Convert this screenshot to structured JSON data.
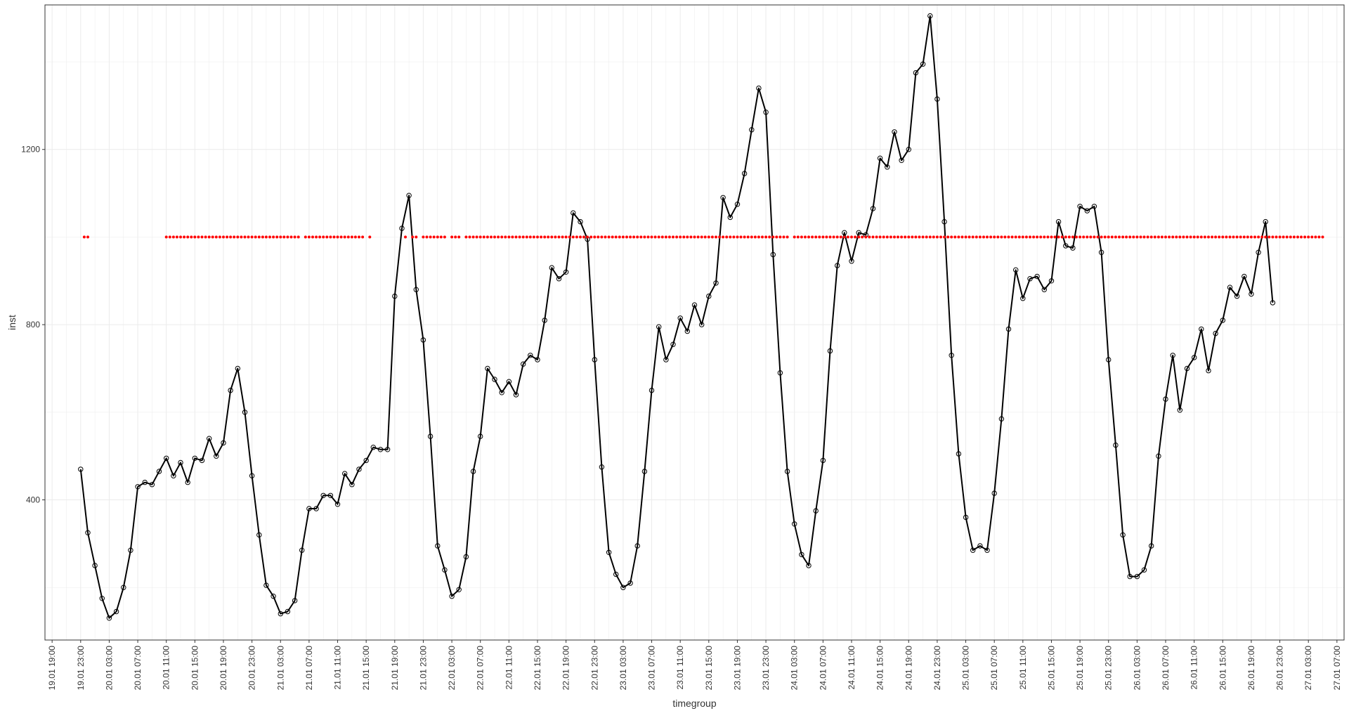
{
  "chart_data": {
    "type": "line",
    "title": "",
    "xlabel": "timegroup",
    "ylabel": "inst",
    "ylim": [
      80,
      1530
    ],
    "y_ticks": [
      400,
      800,
      1200
    ],
    "x_start": "2019-01-19T19:00",
    "x_ticks": [
      "19.01 19:00",
      "19.01 23:00",
      "20.01 03:00",
      "20.01 07:00",
      "20.01 11:00",
      "20.01 15:00",
      "20.01 19:00",
      "20.01 23:00",
      "21.01 03:00",
      "21.01 07:00",
      "21.01 11:00",
      "21.01 15:00",
      "21.01 19:00",
      "21.01 23:00",
      "22.01 03:00",
      "22.01 07:00",
      "22.01 11:00",
      "22.01 15:00",
      "22.01 19:00",
      "22.01 23:00",
      "23.01 03:00",
      "23.01 07:00",
      "23.01 11:00",
      "23.01 15:00",
      "23.01 19:00",
      "23.01 23:00",
      "24.01 03:00",
      "24.01 07:00",
      "24.01 11:00",
      "24.01 15:00",
      "24.01 19:00",
      "24.01 23:00",
      "25.01 03:00",
      "25.01 07:00",
      "25.01 11:00",
      "25.01 15:00",
      "25.01 19:00",
      "25.01 23:00",
      "26.01 03:00",
      "26.01 07:00",
      "26.01 11:00",
      "26.01 15:00",
      "26.01 19:00",
      "26.01 23:00",
      "27.01 03:00",
      "27.01 07:00"
    ],
    "grid": true,
    "colors": {
      "line": "#000000",
      "marker": "#ff0000",
      "grid": "#ebebeb",
      "panel_border": "#333333"
    },
    "series": [
      {
        "mark": "line+points",
        "x_start": "19.01 23:00",
        "x_step_hours": 1,
        "values": [
          470,
          325,
          250,
          175,
          130,
          145,
          200,
          285,
          430,
          440,
          435,
          465,
          495,
          455,
          485,
          440,
          495,
          490,
          540,
          500,
          530,
          650,
          700,
          600,
          455,
          320,
          205,
          180,
          140,
          145,
          170,
          285,
          380,
          380,
          410,
          410,
          390,
          460,
          435,
          470,
          490,
          520,
          515,
          515,
          865,
          1020,
          1095,
          880,
          765,
          545,
          295,
          240,
          180,
          195,
          270,
          465,
          545,
          700,
          675,
          645,
          670,
          640,
          710,
          730,
          720,
          810,
          930,
          905,
          920,
          1055,
          1035,
          995,
          720,
          475,
          280,
          230,
          200,
          210,
          295,
          465,
          650,
          795,
          720,
          755,
          815,
          785,
          845,
          800,
          865,
          895,
          1090,
          1045,
          1075,
          1145,
          1245,
          1340,
          1285,
          960,
          690,
          465,
          345,
          275,
          250,
          375,
          490,
          740,
          935,
          1010,
          945,
          1010,
          1005,
          1065,
          1180,
          1160,
          1240,
          1175,
          1200,
          1375,
          1395,
          1505,
          1315,
          1035,
          730,
          505,
          360,
          285,
          295,
          285,
          415,
          585,
          790,
          925,
          860,
          905,
          910,
          880,
          900,
          1035,
          980,
          975,
          1070,
          1060,
          1070,
          965,
          720,
          525,
          320,
          225,
          225,
          240,
          295,
          500,
          630,
          730,
          605,
          700,
          725,
          790,
          695,
          780,
          810,
          885,
          865,
          910,
          870,
          965,
          1035,
          850
        ]
      },
      {
        "mark": "points",
        "y_value": 1000,
        "x_hours": [
          4.5,
          5.0,
          16.0,
          16.5,
          17.0,
          17.5,
          18.0,
          18.5,
          19.0,
          19.5,
          20.0,
          20.5,
          21.0,
          21.5,
          22.0,
          22.5,
          23.0,
          23.5,
          24.0,
          24.5,
          25.0,
          25.5,
          26.0,
          26.5,
          27.0,
          27.5,
          28.0,
          28.5,
          29.0,
          29.5,
          30.0,
          30.5,
          31.0,
          31.5,
          32.0,
          32.5,
          33.0,
          33.5,
          34.0,
          34.5,
          35.5,
          36.0,
          36.5,
          37.0,
          37.5,
          38.0,
          38.5,
          39.0,
          39.5,
          40.0,
          40.5,
          41.0,
          41.5,
          42.0,
          42.5,
          43.0,
          43.5,
          44.5,
          49.5,
          50.5,
          51.0,
          52.0,
          52.5,
          53.0,
          53.5,
          54.0,
          54.5,
          55.0,
          56.0,
          56.5,
          57.0,
          58.0,
          58.5,
          59.0,
          59.5,
          60.0,
          60.5,
          61.0,
          61.5,
          62.0,
          62.5,
          63.0,
          63.5,
          64.0,
          64.5,
          65.0,
          65.5,
          66.0,
          66.5,
          67.0,
          67.5,
          68.0,
          68.5,
          69.0,
          69.5,
          70.0,
          70.5,
          71.0,
          71.5,
          72.0,
          72.5,
          73.0,
          73.5,
          74.0,
          74.5,
          75.0,
          75.5,
          76.0,
          76.5,
          77.0,
          77.5,
          78.0,
          78.5,
          79.0,
          79.5,
          80.0,
          80.5,
          81.0,
          81.5,
          82.0,
          82.5,
          83.0,
          83.5,
          84.0,
          84.5,
          85.0,
          85.5,
          86.0,
          86.5,
          87.0,
          87.5,
          88.0,
          88.5,
          89.0,
          89.5,
          90.0,
          90.5,
          91.0,
          91.5,
          92.0,
          92.5,
          93.0,
          93.5,
          94.0,
          94.5,
          95.0,
          95.5,
          96.0,
          96.5,
          97.0,
          97.5,
          98.0,
          98.5,
          99.0,
          99.5,
          100.0,
          100.5,
          101.0,
          101.5,
          102.0,
          102.5,
          103.0,
          104.0,
          104.5,
          105.0,
          105.5,
          106.0,
          106.5,
          107.0,
          107.5,
          108.0,
          108.5,
          109.0,
          109.5,
          110.0,
          110.5,
          111.0,
          111.5,
          112.0,
          112.5,
          113.0,
          113.5,
          114.0,
          114.5,
          115.0,
          115.5,
          116.0,
          116.5,
          117.0,
          117.5,
          118.0,
          118.5,
          119.0,
          119.5,
          120.0,
          120.5,
          121.0,
          121.5,
          122.0,
          122.5,
          123.0,
          123.5,
          124.0,
          124.5,
          125.0,
          125.5,
          126.0,
          126.5,
          127.0,
          127.5,
          128.0,
          128.5,
          129.0,
          129.5,
          130.0,
          130.5,
          131.0,
          131.5,
          132.0,
          132.5,
          133.0,
          133.5,
          134.0,
          134.5,
          135.0,
          135.5,
          136.0,
          136.5,
          137.0,
          137.5,
          138.0,
          138.5,
          139.0,
          139.5,
          140.0,
          140.5,
          141.0,
          141.5,
          142.0,
          142.5,
          143.0,
          143.5,
          144.0,
          144.5,
          145.0,
          145.5,
          146.0,
          146.5,
          147.0,
          147.5,
          148.0,
          148.5,
          149.0,
          149.5,
          150.0,
          150.5,
          151.0,
          151.5,
          152.0,
          152.5,
          153.0,
          153.5,
          154.0,
          154.5,
          155.0,
          155.5,
          156.0,
          156.5,
          157.0,
          157.5,
          158.0,
          158.5,
          159.0,
          159.5,
          160.0,
          160.5,
          161.0,
          161.5,
          162.0,
          162.5,
          163.0,
          163.5,
          164.0,
          164.5,
          165.0,
          165.5,
          166.0,
          166.5,
          167.0,
          167.5,
          168.0,
          168.5,
          169.0,
          169.5,
          170.0,
          170.5,
          171.0,
          171.5,
          172.0,
          172.5,
          173.0,
          173.5,
          174.0,
          174.5,
          175.0,
          175.5,
          176.0,
          176.5,
          177.0,
          177.5,
          178.0
        ]
      }
    ]
  }
}
